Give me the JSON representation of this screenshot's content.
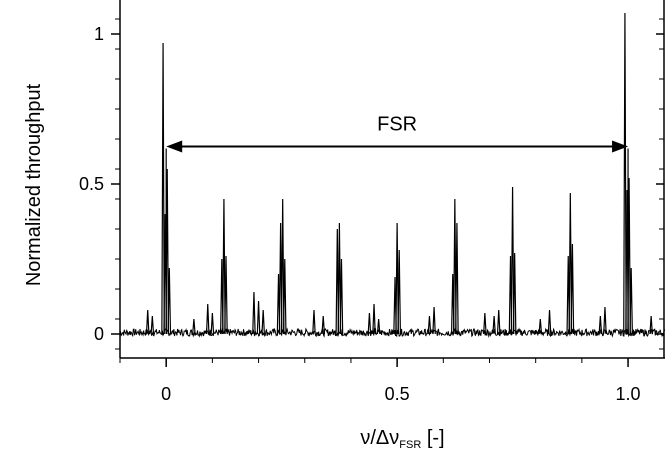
{
  "chart_data": {
    "type": "line",
    "title": "",
    "xlabel": {
      "prefix": "ν/Δν",
      "subscript": "FSR",
      "suffix": " [-]"
    },
    "ylabel": "Normalized throughput",
    "xlim": [
      -0.1,
      1.08
    ],
    "ylim": [
      -0.08,
      1.1
    ],
    "x_ticks": [
      {
        "value": 0.0,
        "label": "0"
      },
      {
        "value": 0.5,
        "label": "0.5"
      },
      {
        "value": 1.0,
        "label": "1.0"
      }
    ],
    "y_ticks": [
      {
        "value": 0.0,
        "label": "0"
      },
      {
        "value": 0.5,
        "label": "0.5"
      },
      {
        "value": 1.0,
        "label": "1"
      }
    ],
    "grid": false,
    "line_color": "#000000",
    "baseline_noise": 0.012,
    "annotation": {
      "text": "FSR",
      "x_from": 0.0,
      "x_to": 1.0,
      "y": 0.625
    },
    "marker_lines": [
      0.0,
      1.0
    ],
    "peak_groups": [
      {
        "x": 0.0,
        "heights": [
          0.97,
          0.4,
          0.55,
          0.22
        ]
      },
      {
        "x": 0.125,
        "heights": [
          0.25,
          0.45,
          0.26
        ]
      },
      {
        "x": 0.25,
        "heights": [
          0.2,
          0.37,
          0.45,
          0.25
        ]
      },
      {
        "x": 0.375,
        "heights": [
          0.35,
          0.37,
          0.25
        ]
      },
      {
        "x": 0.5,
        "heights": [
          0.19,
          0.37,
          0.28
        ]
      },
      {
        "x": 0.625,
        "heights": [
          0.2,
          0.45,
          0.37
        ]
      },
      {
        "x": 0.75,
        "heights": [
          0.26,
          0.49,
          0.27
        ]
      },
      {
        "x": 0.875,
        "heights": [
          0.26,
          0.47,
          0.3
        ]
      },
      {
        "x": 1.0,
        "heights": [
          1.07,
          0.48,
          0.52,
          0.22
        ]
      }
    ],
    "minor_peaks": [
      {
        "x": -0.04,
        "h": 0.08
      },
      {
        "x": -0.03,
        "h": 0.06
      },
      {
        "x": 0.06,
        "h": 0.05
      },
      {
        "x": 0.09,
        "h": 0.1
      },
      {
        "x": 0.1,
        "h": 0.07
      },
      {
        "x": 0.19,
        "h": 0.14
      },
      {
        "x": 0.21,
        "h": 0.08
      },
      {
        "x": 0.2,
        "h": 0.11
      },
      {
        "x": 0.32,
        "h": 0.08
      },
      {
        "x": 0.34,
        "h": 0.06
      },
      {
        "x": 0.44,
        "h": 0.07
      },
      {
        "x": 0.45,
        "h": 0.1
      },
      {
        "x": 0.46,
        "h": 0.05
      },
      {
        "x": 0.57,
        "h": 0.06
      },
      {
        "x": 0.58,
        "h": 0.09
      },
      {
        "x": 0.69,
        "h": 0.07
      },
      {
        "x": 0.71,
        "h": 0.06
      },
      {
        "x": 0.72,
        "h": 0.08
      },
      {
        "x": 0.81,
        "h": 0.05
      },
      {
        "x": 0.83,
        "h": 0.08
      },
      {
        "x": 0.94,
        "h": 0.06
      },
      {
        "x": 0.95,
        "h": 0.09
      },
      {
        "x": 1.05,
        "h": 0.06
      }
    ]
  }
}
